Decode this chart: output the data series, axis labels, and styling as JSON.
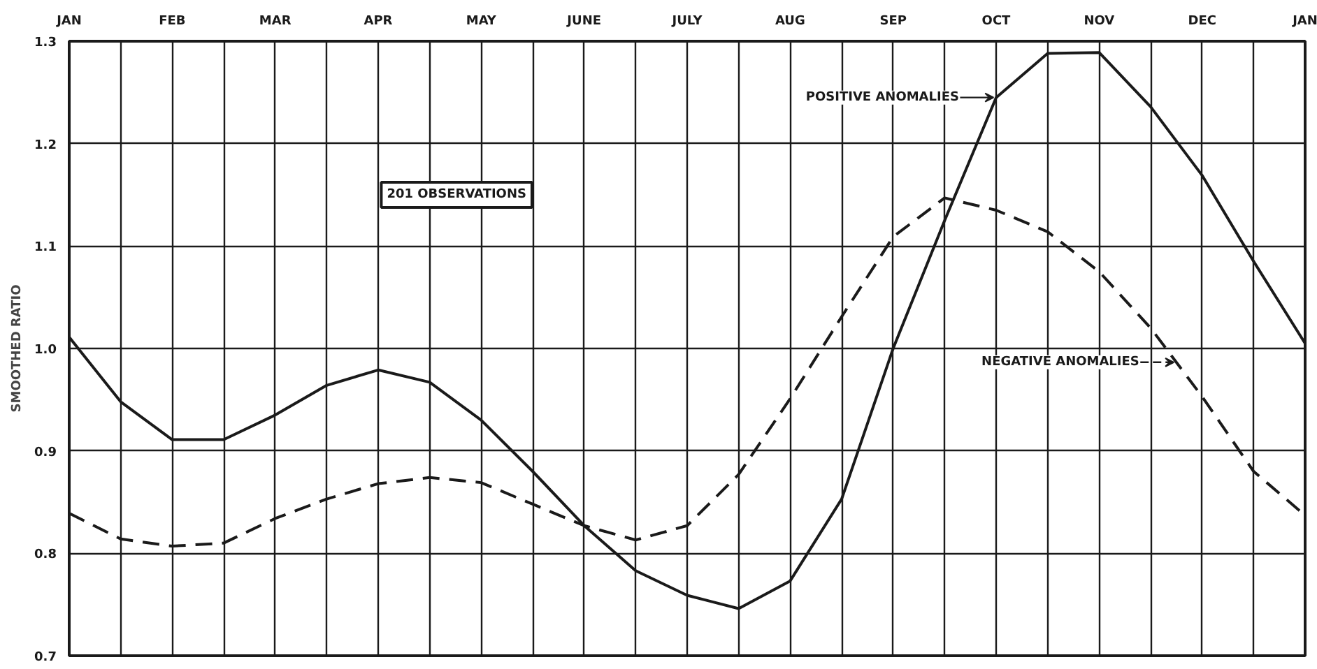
{
  "chart_data": {
    "type": "line",
    "ylabel": "SMOOTHED RATIO",
    "categories": [
      "JAN",
      null,
      "FEB",
      null,
      "MAR",
      null,
      "APR",
      null,
      "MAY",
      null,
      "JUNE",
      null,
      "JULY",
      null,
      "AUG",
      null,
      "SEP",
      null,
      "OCT",
      null,
      "NOV",
      null,
      "DEC",
      null,
      "JAN"
    ],
    "series": [
      {
        "name": "POSITIVE ANOMALIES",
        "color": "#1a1a1a",
        "line_style": "solid",
        "values": [
          1.011,
          0.948,
          0.911,
          0.911,
          0.935,
          0.964,
          0.979,
          0.967,
          0.93,
          0.88,
          0.827,
          0.783,
          0.759,
          0.746,
          0.773,
          0.853,
          1.0,
          1.125,
          1.245,
          1.288,
          1.289,
          1.236,
          1.169,
          1.085,
          1.005
        ]
      },
      {
        "name": "NEGATIVE ANOMALIES",
        "color": "#1a1a1a",
        "line_style": "dashed",
        "values": [
          0.839,
          0.814,
          0.807,
          0.81,
          0.834,
          0.853,
          0.868,
          0.874,
          0.869,
          0.848,
          0.827,
          0.813,
          0.827,
          0.877,
          0.951,
          1.031,
          1.109,
          1.147,
          1.135,
          1.114,
          1.075,
          1.02,
          0.953,
          0.88,
          0.837
        ]
      }
    ],
    "ylim": [
      0.7,
      1.3
    ],
    "yticks": [
      {
        "value": 0.7,
        "label": "0.7"
      },
      {
        "value": 0.8,
        "label": "0.8"
      },
      {
        "value": 0.9,
        "label": "0.9"
      },
      {
        "value": 1.0,
        "label": "1.0"
      },
      {
        "value": 1.1,
        "label": "1.1"
      },
      {
        "value": 1.2,
        "label": "1.2"
      },
      {
        "value": 1.3,
        "label": "1.3"
      }
    ],
    "grid": true,
    "legend": "top right",
    "annotations": [
      "201 OBSERVATIONS"
    ]
  }
}
